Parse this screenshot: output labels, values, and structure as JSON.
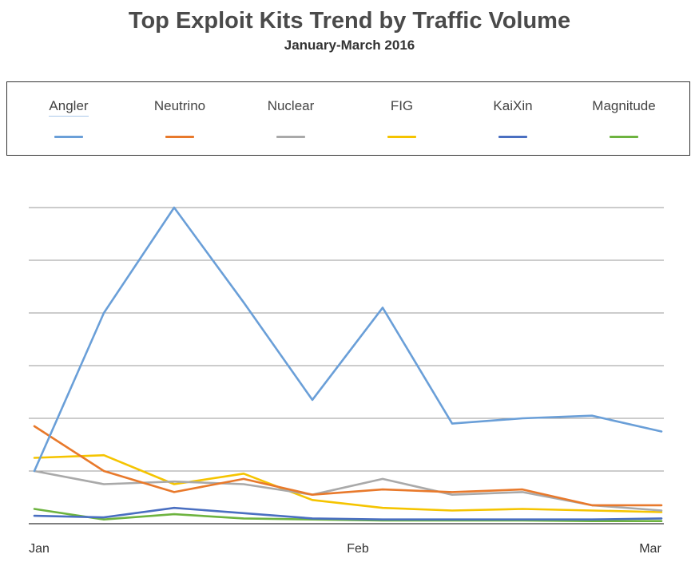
{
  "chart_data": {
    "type": "line",
    "title": "Top Exploit Kits Trend by Traffic Volume",
    "subtitle": "January-March 2016",
    "xlabel": "",
    "ylabel": "",
    "x_ticks": [
      "Jan",
      "Feb",
      "Mar"
    ],
    "ylim": [
      0,
      6
    ],
    "grid": true,
    "legend_position": "top",
    "x": [
      0,
      1,
      2,
      3,
      4,
      5,
      6,
      7,
      8,
      9
    ],
    "series": [
      {
        "name": "Angler",
        "color": "#6a9fd8",
        "values": [
          1.0,
          4.0,
          6.0,
          4.2,
          2.35,
          4.1,
          1.9,
          2.0,
          2.05,
          1.75
        ]
      },
      {
        "name": "Neutrino",
        "color": "#e8792b",
        "values": [
          1.85,
          1.0,
          0.6,
          0.85,
          0.55,
          0.65,
          0.6,
          0.65,
          0.35,
          0.35
        ]
      },
      {
        "name": "Nuclear",
        "color": "#a9a9a9",
        "values": [
          1.0,
          0.75,
          0.8,
          0.75,
          0.55,
          0.85,
          0.55,
          0.6,
          0.35,
          0.25
        ]
      },
      {
        "name": "FIG",
        "color": "#f5c400",
        "values": [
          1.25,
          1.3,
          0.75,
          0.95,
          0.45,
          0.3,
          0.25,
          0.28,
          0.25,
          0.22
        ]
      },
      {
        "name": "KaiXin",
        "color": "#4a6fc1",
        "values": [
          0.15,
          0.12,
          0.3,
          0.2,
          0.1,
          0.08,
          0.08,
          0.08,
          0.08,
          0.1
        ]
      },
      {
        "name": "Magnitude",
        "color": "#6db33f",
        "values": [
          0.28,
          0.08,
          0.18,
          0.1,
          0.08,
          0.06,
          0.06,
          0.06,
          0.05,
          0.05
        ]
      }
    ]
  }
}
